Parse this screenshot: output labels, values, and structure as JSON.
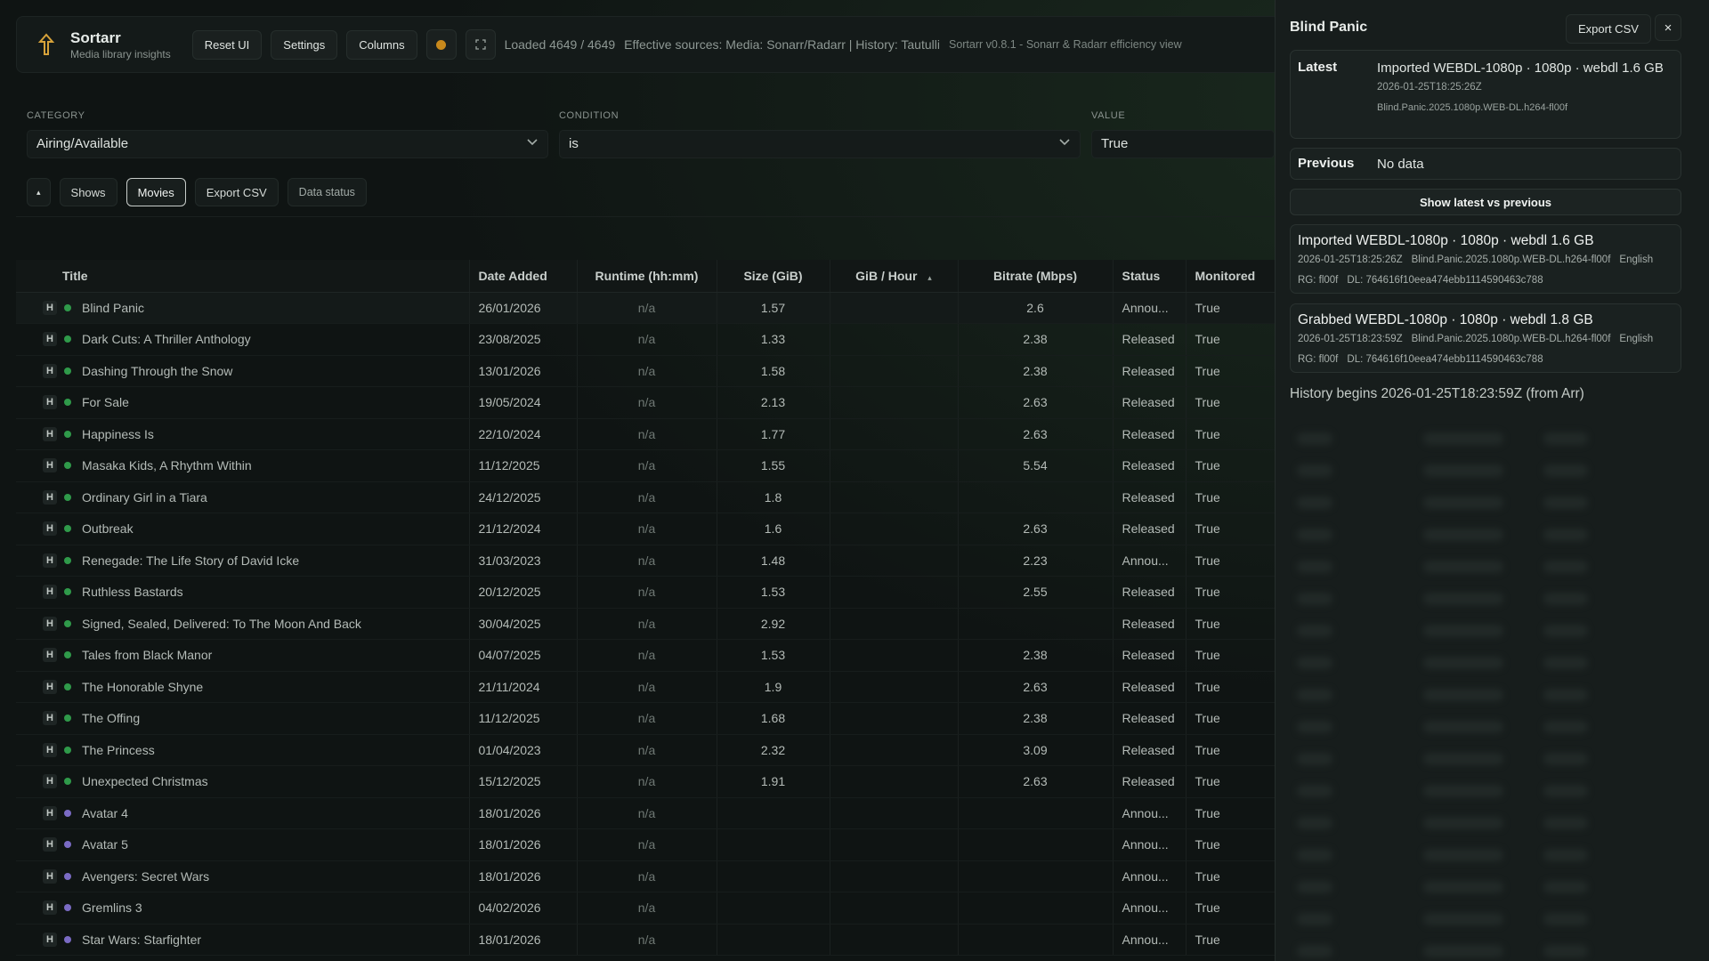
{
  "app": {
    "name": "Sortarr",
    "subtitle": "Media library insights"
  },
  "toolbar": {
    "reset_label": "Reset UI",
    "settings_label": "Settings",
    "columns_label": "Columns",
    "loaded_text": "Loaded 4649 / 4649",
    "sources_text": "Effective sources: Media: Sonarr/Radarr | History: Tautulli",
    "version_text": "Sortarr v0.8.1 - Sonarr & Radarr efficiency view"
  },
  "filters": {
    "category_label": "CATEGORY",
    "category_value": "Airing/Available",
    "condition_label": "CONDITION",
    "condition_value": "is",
    "value_label": "VALUE",
    "value_value": "True"
  },
  "chips": {
    "collapse": "▴",
    "shows": "Shows",
    "movies": "Movies",
    "export": "Export CSV",
    "data_status": "Data status"
  },
  "table": {
    "columns": [
      "Title",
      "Date Added",
      "Runtime (hh:mm)",
      "Size (GiB)",
      "GiB / Hour",
      "Bitrate (Mbps)",
      "Status",
      "Monitored"
    ],
    "sort_indicator": "▴",
    "rows": [
      {
        "title": "Blind Panic",
        "date": "26/01/2026",
        "runtime": "n/a",
        "size": "1.57",
        "gph": "",
        "bitrate": "2.6",
        "status": "Annou...",
        "monitored": "True",
        "dot": "green"
      },
      {
        "title": "Dark Cuts: A Thriller Anthology",
        "date": "23/08/2025",
        "runtime": "n/a",
        "size": "1.33",
        "gph": "",
        "bitrate": "2.38",
        "status": "Released",
        "monitored": "True",
        "dot": "green"
      },
      {
        "title": "Dashing Through the Snow",
        "date": "13/01/2026",
        "runtime": "n/a",
        "size": "1.58",
        "gph": "",
        "bitrate": "2.38",
        "status": "Released",
        "monitored": "True",
        "dot": "green"
      },
      {
        "title": "For Sale",
        "date": "19/05/2024",
        "runtime": "n/a",
        "size": "2.13",
        "gph": "",
        "bitrate": "2.63",
        "status": "Released",
        "monitored": "True",
        "dot": "green"
      },
      {
        "title": "Happiness Is",
        "date": "22/10/2024",
        "runtime": "n/a",
        "size": "1.77",
        "gph": "",
        "bitrate": "2.63",
        "status": "Released",
        "monitored": "True",
        "dot": "green"
      },
      {
        "title": "Masaka Kids, A Rhythm Within",
        "date": "11/12/2025",
        "runtime": "n/a",
        "size": "1.55",
        "gph": "",
        "bitrate": "5.54",
        "status": "Released",
        "monitored": "True",
        "dot": "green"
      },
      {
        "title": "Ordinary Girl in a Tiara",
        "date": "24/12/2025",
        "runtime": "n/a",
        "size": "1.8",
        "gph": "",
        "bitrate": "",
        "status": "Released",
        "monitored": "True",
        "dot": "green"
      },
      {
        "title": "Outbreak",
        "date": "21/12/2024",
        "runtime": "n/a",
        "size": "1.6",
        "gph": "",
        "bitrate": "2.63",
        "status": "Released",
        "monitored": "True",
        "dot": "green"
      },
      {
        "title": "Renegade: The Life Story of David Icke",
        "date": "31/03/2023",
        "runtime": "n/a",
        "size": "1.48",
        "gph": "",
        "bitrate": "2.23",
        "status": "Annou...",
        "monitored": "True",
        "dot": "green"
      },
      {
        "title": "Ruthless Bastards",
        "date": "20/12/2025",
        "runtime": "n/a",
        "size": "1.53",
        "gph": "",
        "bitrate": "2.55",
        "status": "Released",
        "monitored": "True",
        "dot": "green"
      },
      {
        "title": "Signed, Sealed, Delivered: To The Moon And Back",
        "date": "30/04/2025",
        "runtime": "n/a",
        "size": "2.92",
        "gph": "",
        "bitrate": "",
        "status": "Released",
        "monitored": "True",
        "dot": "green"
      },
      {
        "title": "Tales from Black Manor",
        "date": "04/07/2025",
        "runtime": "n/a",
        "size": "1.53",
        "gph": "",
        "bitrate": "2.38",
        "status": "Released",
        "monitored": "True",
        "dot": "green"
      },
      {
        "title": "The Honorable Shyne",
        "date": "21/11/2024",
        "runtime": "n/a",
        "size": "1.9",
        "gph": "",
        "bitrate": "2.63",
        "status": "Released",
        "monitored": "True",
        "dot": "green"
      },
      {
        "title": "The Offing",
        "date": "11/12/2025",
        "runtime": "n/a",
        "size": "1.68",
        "gph": "",
        "bitrate": "2.38",
        "status": "Released",
        "monitored": "True",
        "dot": "green"
      },
      {
        "title": "The Princess",
        "date": "01/04/2023",
        "runtime": "n/a",
        "size": "2.32",
        "gph": "",
        "bitrate": "3.09",
        "status": "Released",
        "monitored": "True",
        "dot": "green"
      },
      {
        "title": "Unexpected Christmas",
        "date": "15/12/2025",
        "runtime": "n/a",
        "size": "1.91",
        "gph": "",
        "bitrate": "2.63",
        "status": "Released",
        "monitored": "True",
        "dot": "green"
      },
      {
        "title": "Avatar 4",
        "date": "18/01/2026",
        "runtime": "n/a",
        "size": "",
        "gph": "",
        "bitrate": "",
        "status": "Annou...",
        "monitored": "True",
        "dot": "purple"
      },
      {
        "title": "Avatar 5",
        "date": "18/01/2026",
        "runtime": "n/a",
        "size": "",
        "gph": "",
        "bitrate": "",
        "status": "Annou...",
        "monitored": "True",
        "dot": "purple"
      },
      {
        "title": "Avengers: Secret Wars",
        "date": "18/01/2026",
        "runtime": "n/a",
        "size": "",
        "gph": "",
        "bitrate": "",
        "status": "Annou...",
        "monitored": "True",
        "dot": "purple"
      },
      {
        "title": "Gremlins 3",
        "date": "04/02/2026",
        "runtime": "n/a",
        "size": "",
        "gph": "",
        "bitrate": "",
        "status": "Annou...",
        "monitored": "True",
        "dot": "purple"
      },
      {
        "title": "Star Wars: Starfighter",
        "date": "18/01/2026",
        "runtime": "n/a",
        "size": "",
        "gph": "",
        "bitrate": "",
        "status": "Annou...",
        "monitored": "True",
        "dot": "purple"
      }
    ]
  },
  "panel": {
    "title": "Blind Panic",
    "export_label": "Export CSV",
    "close_label": "×",
    "latest_key": "Latest",
    "latest_value": "Imported WEBDL-1080p · 1080p · webdl 1.6 GB",
    "latest_time": "2026-01-25T18:25:26Z",
    "latest_file": "Blind.Panic.2025.1080p.WEB-DL.h264-fl00f",
    "previous_key": "Previous",
    "previous_value": "No data",
    "show_button": "Show latest vs previous",
    "history": [
      {
        "title": "Imported WEBDL-1080p · 1080p · webdl 1.6 GB",
        "time": "2026-01-25T18:25:26Z",
        "file": "Blind.Panic.2025.1080p.WEB-DL.h264-fl00f",
        "lang": "English",
        "rg": "RG: fl00f",
        "dl": "DL: 764616f10eea474ebb1114590463c788"
      },
      {
        "title": "Grabbed WEBDL-1080p · 1080p · webdl 1.8 GB",
        "time": "2026-01-25T18:23:59Z",
        "file": "Blind.Panic.2025.1080p.WEB-DL.h264-fl00f",
        "lang": "English",
        "rg": "RG: fl00f",
        "dl": "DL: 764616f10eea474ebb1114590463c788"
      }
    ],
    "history_begins": "History begins 2026-01-25T18:23:59Z (from Arr)"
  },
  "colors": {
    "accent_amber": "#c8891c",
    "dot_green": "#2f9a4a",
    "dot_purple": "#7a6bc4"
  }
}
